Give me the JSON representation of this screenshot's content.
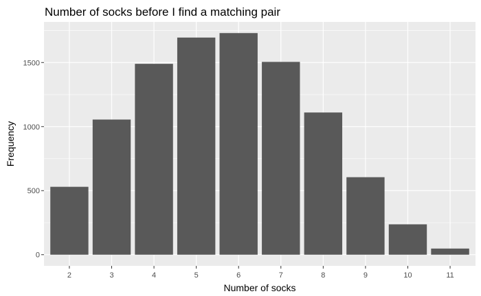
{
  "chart_data": {
    "type": "bar",
    "title": "Number of socks before I find a matching pair",
    "xlabel": "Number of socks",
    "ylabel": "Frequency",
    "categories": [
      "2",
      "3",
      "4",
      "5",
      "6",
      "7",
      "8",
      "9",
      "10",
      "11"
    ],
    "values": [
      530,
      1055,
      1490,
      1695,
      1730,
      1505,
      1110,
      605,
      237,
      48
    ],
    "y_ticks": [
      0,
      500,
      1000,
      1500
    ],
    "ylim": [
      -87,
      1817
    ],
    "grid": true,
    "legend": "none",
    "colors": {
      "panel_background": "#ebebeb",
      "grid": "#ffffff",
      "bar_fill": "#595959",
      "tick_text": "#4d4d4d",
      "tick_mark": "#333333"
    }
  }
}
